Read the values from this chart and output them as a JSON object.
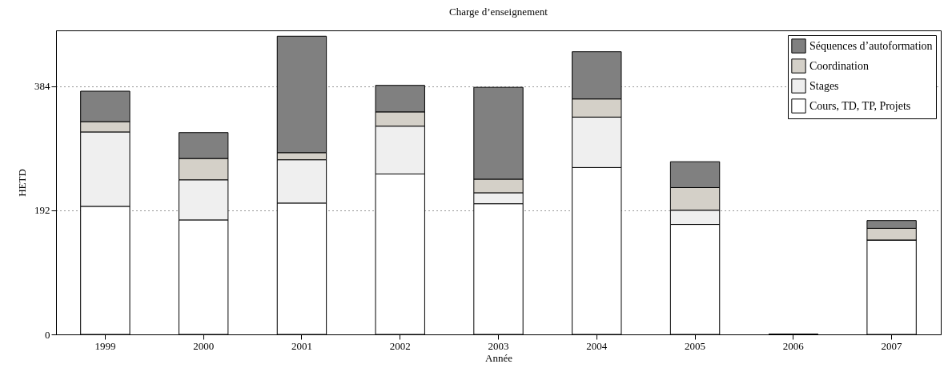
{
  "chart_data": {
    "type": "bar",
    "title": "Charge d’enseignement",
    "xlabel": "Année",
    "ylabel": "HETD",
    "categories": [
      "1999",
      "2000",
      "2001",
      "2002",
      "2003",
      "2004",
      "2005",
      "2006",
      "2007"
    ],
    "stacked": true,
    "series": [
      {
        "name": "Cours, TD, TP, Projets",
        "color": "#ffffff",
        "values": [
          198,
          177,
          203,
          248,
          202,
          258,
          170,
          0,
          146
        ]
      },
      {
        "name": "Stages",
        "color": "#efefef",
        "values": [
          115,
          62,
          67,
          74,
          17,
          78,
          22,
          0,
          0
        ]
      },
      {
        "name": "Coordination",
        "color": "#d4d0c8",
        "values": [
          16,
          33,
          11,
          22,
          21,
          28,
          35,
          0,
          18
        ]
      },
      {
        "name": "Séquences d’autoformation",
        "color": "#808080",
        "values": [
          47,
          40,
          180,
          41,
          142,
          73,
          40,
          0,
          12
        ]
      }
    ],
    "ylim": [
      0,
      470
    ],
    "yticks": [
      0,
      192,
      384
    ],
    "grid": "y",
    "legend": "top right"
  }
}
